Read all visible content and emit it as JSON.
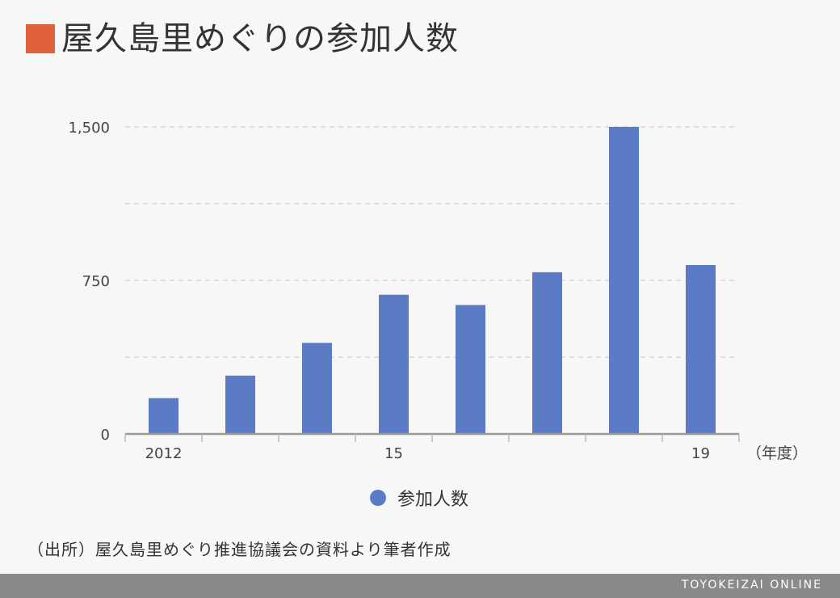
{
  "title": "屋久島里めぐりの参加人数",
  "source": "（出所）屋久島里めぐり推進協議会の資料より筆者作成",
  "brand": "TOYOKEIZAI ONLINE",
  "colors": {
    "title_marker": "#e0623d",
    "bar": "#5b7bc4",
    "grid": "#d6d6d6",
    "axis": "#999999",
    "footer": "#8a8a8a"
  },
  "chart_data": {
    "type": "bar",
    "categories": [
      "2012",
      "",
      "",
      "15",
      "",
      "",
      "",
      "19"
    ],
    "x_unit_label": "（年度）",
    "series": [
      {
        "name": "参加人数",
        "values": [
          175,
          285,
          445,
          680,
          630,
          790,
          1500,
          825
        ]
      }
    ],
    "ylim": [
      0,
      1500
    ],
    "y_ticks": [
      {
        "value": 0,
        "label": "0"
      },
      {
        "value": 375,
        "label": ""
      },
      {
        "value": 750,
        "label": "750"
      },
      {
        "value": 1125,
        "label": ""
      },
      {
        "value": 1500,
        "label": "1,500"
      }
    ],
    "grid": true,
    "legend": "bottom-center"
  }
}
